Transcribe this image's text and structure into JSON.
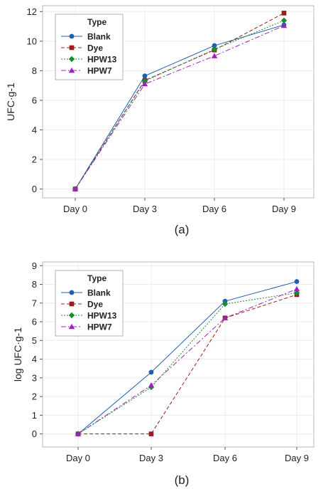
{
  "chart_data": [
    {
      "type": "line",
      "caption": "(a)",
      "ylabel": "UFC·g-1",
      "xlabel": "",
      "categories": [
        "Day 0",
        "Day 3",
        "Day 6",
        "Day 9"
      ],
      "ylim": [
        -0.6,
        12.4
      ],
      "yticks": [
        0,
        2,
        4,
        6,
        8,
        10,
        12
      ],
      "grid": true,
      "legend": {
        "title": "Type",
        "placement": "top-left"
      },
      "series": [
        {
          "name": "Blank",
          "values": [
            0,
            7.65,
            9.7,
            11.1
          ],
          "color": "#1f5fb0",
          "marker": "circle",
          "dash": ""
        },
        {
          "name": "Dye",
          "values": [
            0,
            7.35,
            9.4,
            11.9
          ],
          "color": "#9b1c1c",
          "marker": "square",
          "dash": "5,3"
        },
        {
          "name": "HPW13",
          "values": [
            0,
            7.3,
            9.45,
            11.4
          ],
          "color": "#1a8c2e",
          "marker": "diamond",
          "dash": "2,2"
        },
        {
          "name": "HPW7",
          "values": [
            0,
            7.1,
            9.0,
            11.05
          ],
          "color": "#a020c0",
          "marker": "triangle",
          "dash": "7,3,2,3"
        }
      ]
    },
    {
      "type": "line",
      "caption": "(b)",
      "ylabel": "log UFC·g-1",
      "xlabel": "",
      "categories": [
        "Day 0",
        "Day 3",
        "Day 6",
        "Day 9"
      ],
      "ylim": [
        -0.7,
        9.2
      ],
      "yticks": [
        0,
        1,
        2,
        3,
        4,
        5,
        6,
        7,
        8,
        9
      ],
      "grid": true,
      "legend": {
        "title": "Type",
        "placement": "top-left"
      },
      "series": [
        {
          "name": "Blank",
          "values": [
            0,
            3.3,
            7.1,
            8.15
          ],
          "color": "#1f5fb0",
          "marker": "circle",
          "dash": ""
        },
        {
          "name": "Dye",
          "values": [
            0,
            0,
            6.2,
            7.45
          ],
          "color": "#9b1c1c",
          "marker": "square",
          "dash": "5,3"
        },
        {
          "name": "HPW13",
          "values": [
            0,
            2.5,
            6.95,
            7.55
          ],
          "color": "#1a8c2e",
          "marker": "diamond",
          "dash": "2,2"
        },
        {
          "name": "HPW7",
          "values": [
            0,
            2.6,
            6.2,
            7.75
          ],
          "color": "#a020c0",
          "marker": "triangle",
          "dash": "7,3,2,3"
        }
      ]
    }
  ]
}
